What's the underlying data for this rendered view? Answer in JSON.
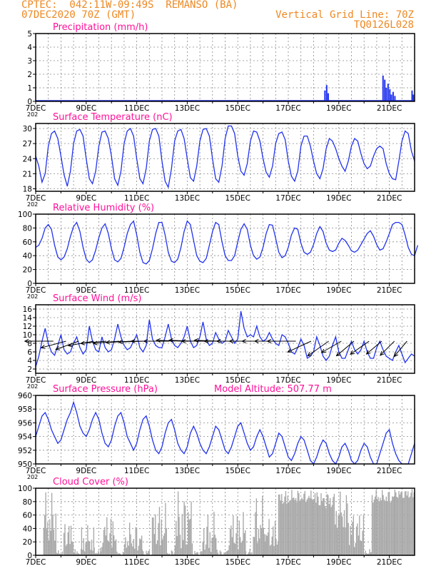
{
  "header": {
    "line1_left": "CPTEC:  042:11W-09:49S  REMANSO (BA)",
    "line2_left": "07DEC2020 70Z (GMT)",
    "line1_right": "Vertical Grid Line: 70Z",
    "line2_right": "TQ0126L028",
    "color": "#ee8822"
  },
  "colors": {
    "title": "#ff1199",
    "line": "#2233ee",
    "bar": "#2233ee",
    "cloud": "#a8a8a8",
    "arrow": "#000000",
    "grid": "#888888"
  },
  "time_axis": {
    "start_day": 7,
    "end_day": 22,
    "tick_labels": [
      "7DEC",
      "9DEC",
      "11DEC",
      "13DEC",
      "15DEC",
      "17DEC",
      "19DEC",
      "21DEC"
    ],
    "tick_days": [
      7,
      9,
      11,
      13,
      15,
      17,
      19,
      21
    ],
    "minor_label": "202"
  },
  "chart_data": [
    {
      "id": "precip",
      "type": "bar",
      "title": "Precipitation (mm/h)",
      "ylim": [
        0,
        5
      ],
      "yticks": [
        "0",
        "1",
        "2",
        "3",
        "4",
        "5"
      ],
      "points": [
        [
          18.45,
          0.8
        ],
        [
          18.52,
          1.2
        ],
        [
          18.58,
          0.6
        ],
        [
          20.75,
          1.9
        ],
        [
          20.82,
          1.6
        ],
        [
          20.88,
          1.0
        ],
        [
          20.95,
          1.3
        ],
        [
          21.02,
          0.9
        ],
        [
          21.08,
          0.5
        ],
        [
          21.15,
          0.7
        ],
        [
          21.22,
          0.4
        ],
        [
          21.9,
          0.8
        ],
        [
          21.95,
          0.5
        ]
      ]
    },
    {
      "id": "temp",
      "type": "line",
      "title": "Surface Temperature (nC)",
      "ylim": [
        17.5,
        31
      ],
      "yticks": [
        "18",
        "21",
        "24",
        "27",
        "30"
      ],
      "x_start": 7,
      "x_step": 0.125,
      "values": [
        24.5,
        22.5,
        19.3,
        21.0,
        26.5,
        29.0,
        29.5,
        28.0,
        24.5,
        20.8,
        18.5,
        21.5,
        27.0,
        29.5,
        29.8,
        28.5,
        24.0,
        20.0,
        19.0,
        21.5,
        26.5,
        29.3,
        29.5,
        28.0,
        24.5,
        20.0,
        18.7,
        21.5,
        27.0,
        29.5,
        30.0,
        28.5,
        24.0,
        20.0,
        19.0,
        22.0,
        27.5,
        29.8,
        30.0,
        28.5,
        23.5,
        19.5,
        18.3,
        22.0,
        27.5,
        29.5,
        29.8,
        28.0,
        24.0,
        20.2,
        19.5,
        22.5,
        27.5,
        29.8,
        30.0,
        28.5,
        24.0,
        20.0,
        19.3,
        22.5,
        28.0,
        30.5,
        30.5,
        29.0,
        24.5,
        21.5,
        20.7,
        23.0,
        27.5,
        29.5,
        29.3,
        27.5,
        24.0,
        21.3,
        20.3,
        22.5,
        27.0,
        29.0,
        29.3,
        27.8,
        23.5,
        20.5,
        19.5,
        21.5,
        26.5,
        28.5,
        28.5,
        26.5,
        23.5,
        21.0,
        20.0,
        22.0,
        26.0,
        28.0,
        27.5,
        26.0,
        24.0,
        22.5,
        21.5,
        23.5,
        26.5,
        28.0,
        27.5,
        25.0,
        23.0,
        22.0,
        22.5,
        24.5,
        26.0,
        26.5,
        26.0,
        23.0,
        21.0,
        20.0,
        19.8,
        23.5,
        27.5,
        29.5,
        29.0,
        25.5,
        23.5
      ]
    },
    {
      "id": "rh",
      "type": "line",
      "title": "Relative Humidity (%)",
      "ylim": [
        0,
        100
      ],
      "yticks": [
        "0",
        "20",
        "40",
        "60",
        "80",
        "100"
      ],
      "x_start": 7,
      "x_step": 0.125,
      "values": [
        52,
        55,
        65,
        80,
        85,
        78,
        55,
        38,
        34,
        38,
        50,
        68,
        82,
        88,
        75,
        52,
        35,
        30,
        34,
        48,
        66,
        80,
        86,
        72,
        50,
        34,
        31,
        36,
        52,
        72,
        85,
        90,
        70,
        45,
        30,
        28,
        33,
        50,
        72,
        88,
        88,
        70,
        45,
        32,
        30,
        35,
        52,
        75,
        90,
        85,
        62,
        40,
        32,
        30,
        36,
        55,
        75,
        88,
        85,
        60,
        40,
        33,
        33,
        40,
        60,
        78,
        86,
        78,
        55,
        40,
        35,
        38,
        52,
        72,
        85,
        84,
        65,
        45,
        37,
        40,
        52,
        70,
        80,
        78,
        58,
        45,
        42,
        45,
        56,
        72,
        82,
        75,
        58,
        48,
        46,
        48,
        58,
        65,
        62,
        55,
        47,
        45,
        48,
        56,
        64,
        72,
        76,
        68,
        56,
        48,
        50,
        60,
        72,
        85,
        88,
        88,
        85,
        70,
        52,
        42,
        40,
        55
      ]
    },
    {
      "id": "wind",
      "type": "line",
      "title": "Surface Wind (m/s)",
      "ylim": [
        1,
        17
      ],
      "yticks": [
        "2",
        "4",
        "6",
        "8",
        "10",
        "12",
        "14",
        "16"
      ],
      "x_start": 7,
      "x_step": 0.125,
      "values": [
        2.5,
        5.0,
        8.5,
        11.5,
        8.0,
        6.0,
        5.2,
        7.5,
        10.0,
        6.5,
        5.5,
        6.0,
        8.0,
        9.5,
        7.0,
        5.5,
        6.5,
        12.0,
        8.5,
        6.5,
        6.0,
        9.5,
        7.0,
        6.0,
        6.5,
        9.0,
        12.5,
        9.5,
        7.5,
        6.5,
        7.0,
        8.5,
        10.0,
        7.0,
        6.0,
        7.5,
        13.5,
        9.0,
        7.5,
        7.0,
        7.0,
        9.5,
        12.5,
        9.0,
        7.5,
        7.0,
        8.0,
        9.5,
        12.0,
        8.5,
        7.0,
        7.5,
        9.5,
        13.0,
        9.0,
        7.5,
        8.0,
        10.5,
        9.0,
        8.0,
        8.5,
        11.0,
        9.5,
        8.0,
        9.0,
        15.5,
        11.5,
        9.5,
        10.0,
        9.5,
        12.0,
        9.5,
        8.5,
        9.0,
        10.5,
        9.0,
        8.0,
        7.5,
        10.0,
        9.5,
        8.0,
        6.0,
        5.5,
        7.0,
        9.0,
        7.5,
        4.5,
        5.0,
        6.0,
        9.5,
        7.5,
        5.0,
        4.0,
        5.0,
        7.5,
        9.5,
        6.0,
        4.5,
        4.5,
        6.5,
        8.5,
        6.5,
        5.5,
        6.5,
        8.5,
        6.0,
        4.5,
        4.5,
        7.0,
        8.5,
        6.5,
        5.0,
        4.5,
        4.0,
        6.0,
        7.5,
        5.5,
        3.5,
        4.5,
        5.5,
        5.0
      ]
    },
    {
      "id": "pressure",
      "type": "line",
      "title": "Surface Pressure (hPa)",
      "ylim": [
        950,
        960
      ],
      "yticks": [
        "950",
        "952",
        "954",
        "956",
        "958",
        "960"
      ],
      "x_start": 7,
      "x_step": 0.125,
      "values": [
        954.0,
        955.5,
        957.0,
        957.5,
        956.5,
        955.0,
        954.0,
        953.0,
        953.5,
        955.0,
        956.5,
        957.5,
        959.0,
        957.5,
        955.5,
        954.5,
        954.0,
        955.0,
        956.5,
        957.5,
        956.5,
        954.5,
        953.0,
        952.5,
        953.5,
        955.5,
        957.0,
        957.5,
        956.0,
        954.0,
        953.0,
        952.0,
        953.0,
        955.0,
        956.5,
        957.0,
        955.5,
        953.5,
        952.0,
        951.5,
        952.5,
        954.5,
        956.0,
        956.5,
        955.0,
        953.0,
        952.0,
        951.5,
        952.5,
        954.5,
        955.5,
        954.5,
        953.0,
        952.0,
        951.5,
        952.5,
        954.0,
        955.5,
        955.0,
        953.5,
        952.0,
        951.5,
        952.5,
        954.0,
        955.5,
        956.0,
        954.5,
        953.0,
        952.0,
        952.5,
        954.0,
        955.0,
        954.0,
        952.5,
        951.0,
        951.5,
        953.0,
        954.5,
        954.0,
        952.5,
        951.0,
        950.5,
        951.5,
        953.0,
        954.0,
        953.5,
        952.0,
        950.5,
        950.0,
        951.0,
        952.5,
        953.5,
        953.0,
        951.5,
        950.5,
        950.0,
        951.0,
        952.5,
        953.0,
        952.0,
        950.5,
        950.0,
        950.5,
        952.0,
        953.0,
        952.5,
        951.0,
        949.5,
        950.0,
        951.5,
        953.0,
        954.5,
        955.0,
        953.0,
        951.5,
        950.5,
        950.0,
        949.5,
        950.0,
        951.5,
        953.0
      ]
    },
    {
      "id": "cloud",
      "type": "bar",
      "title": "Cloud Cover (%)",
      "ylim": [
        0,
        100
      ],
      "yticks": [
        "0",
        "20",
        "40",
        "60",
        "80",
        "100"
      ],
      "segments": [
        [
          7.0,
          7.3,
          0,
          0
        ],
        [
          7.3,
          7.8,
          20,
          95
        ],
        [
          7.8,
          8.1,
          0,
          8
        ],
        [
          8.1,
          8.5,
          10,
          55
        ],
        [
          8.5,
          8.8,
          0,
          10
        ],
        [
          8.8,
          9.3,
          5,
          45
        ],
        [
          9.3,
          9.6,
          0,
          12
        ],
        [
          9.6,
          10.2,
          10,
          65
        ],
        [
          10.2,
          10.5,
          0,
          6
        ],
        [
          10.5,
          11.2,
          5,
          50
        ],
        [
          11.2,
          11.6,
          0,
          10
        ],
        [
          11.6,
          12.2,
          10,
          80
        ],
        [
          12.2,
          12.5,
          0,
          8
        ],
        [
          12.5,
          13.2,
          10,
          98
        ],
        [
          13.2,
          13.6,
          0,
          8
        ],
        [
          13.6,
          14.2,
          5,
          65
        ],
        [
          14.2,
          14.6,
          0,
          8
        ],
        [
          14.6,
          15.3,
          5,
          70
        ],
        [
          15.3,
          15.6,
          0,
          10
        ],
        [
          15.6,
          16.1,
          10,
          90
        ],
        [
          16.1,
          16.6,
          5,
          60
        ],
        [
          16.6,
          17.2,
          75,
          98
        ],
        [
          17.2,
          18.2,
          78,
          98
        ],
        [
          18.2,
          18.8,
          70,
          97
        ],
        [
          18.8,
          19.4,
          40,
          95
        ],
        [
          19.4,
          20.0,
          10,
          70
        ],
        [
          20.0,
          20.3,
          0,
          10
        ],
        [
          20.3,
          21.2,
          78,
          98
        ],
        [
          21.2,
          22.0,
          85,
          100
        ]
      ]
    }
  ],
  "wind_arrows": {
    "y_level": 8.5,
    "items": [
      [
        7.7,
        10,
        180
      ],
      [
        8.2,
        9,
        195
      ],
      [
        8.7,
        8.5,
        200
      ],
      [
        9.3,
        9,
        190
      ],
      [
        9.8,
        9,
        185
      ],
      [
        10.3,
        9,
        185
      ],
      [
        10.8,
        9,
        183
      ],
      [
        11.3,
        9,
        182
      ],
      [
        11.8,
        9,
        180
      ],
      [
        12.3,
        9,
        180
      ],
      [
        12.8,
        9,
        178
      ],
      [
        13.3,
        9,
        178
      ],
      [
        13.8,
        9,
        180
      ],
      [
        14.3,
        9,
        178
      ],
      [
        14.8,
        10,
        180
      ],
      [
        15.3,
        10,
        180
      ],
      [
        15.8,
        10,
        180
      ],
      [
        16.3,
        10,
        180
      ],
      [
        16.8,
        10,
        180
      ],
      [
        17.3,
        10,
        180
      ],
      [
        17.9,
        9,
        205
      ],
      [
        18.6,
        9,
        215
      ],
      [
        19.1,
        8,
        210
      ],
      [
        19.6,
        8,
        220
      ],
      [
        20.2,
        8,
        215
      ],
      [
        20.7,
        7,
        220
      ],
      [
        21.2,
        7,
        225
      ],
      [
        21.7,
        7,
        230
      ]
    ]
  },
  "labels": {
    "pressure_extra": "Model Altitude: 507.77 m"
  }
}
